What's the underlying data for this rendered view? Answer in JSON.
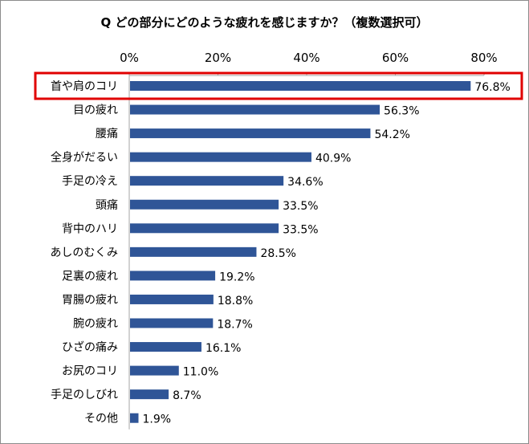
{
  "chart_data": {
    "type": "bar",
    "orientation": "horizontal",
    "title": "Q どの部分にどのような疲れを感じますか？（複数選択可）",
    "categories": [
      "首や肩のコリ",
      "目の疲れ",
      "腰痛",
      "全身がだるい",
      "手足の冷え",
      "頭痛",
      "背中のハリ",
      "あしのむくみ",
      "足裏の疲れ",
      "胃腸の疲れ",
      "腕の疲れ",
      "ひざの痛み",
      "お尻のコリ",
      "手足のしびれ",
      "その他"
    ],
    "values": [
      76.8,
      56.3,
      54.2,
      40.9,
      34.6,
      33.5,
      33.5,
      28.5,
      19.2,
      18.8,
      18.7,
      16.1,
      11.0,
      8.7,
      1.9
    ],
    "data_labels": [
      "76.8%",
      "56.3%",
      "54.2%",
      "40.9%",
      "34.6%",
      "33.5%",
      "33.5%",
      "28.5%",
      "19.2%",
      "18.8%",
      "18.7%",
      "16.1%",
      "11.0%",
      "8.7%",
      "1.9%"
    ],
    "xlim": [
      0,
      80
    ],
    "x_ticks": [
      "0%",
      "20%",
      "40%",
      "60%",
      "80%"
    ],
    "x_axis_position": "top",
    "grid": false,
    "bar_color": "#2f5597",
    "highlight": {
      "category": "首や肩のコリ",
      "color": "#e00000"
    }
  }
}
